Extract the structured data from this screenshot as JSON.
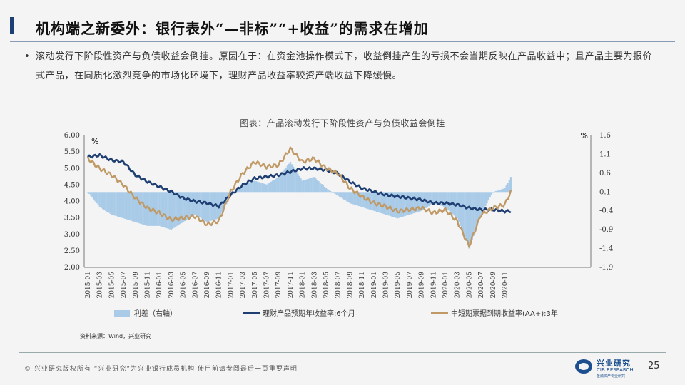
{
  "slide": {
    "title": "机构端之新委外：银行表外“—非标”“+收益”的需求在增加",
    "bullet_symbol": "•",
    "bullet": "滚动发行下阶段性资产与负债收益会倒挂。原因在于：在资金池操作模式下，收益倒挂产生的亏损不会当期反映在产品收益中；且产品主要为报价式产品，在同质化激烈竞争的市场化环境下，理财产品收益率较资产端收益下降缓慢。",
    "chart_title": "图表：产品滚动发行下阶段性资产与负债收益会倒挂",
    "source": "资料来源：Wind，兴业研究",
    "footer": "©  兴业研究版权所有  “兴业研究”为兴业银行成员机构  使用前请参阅最后一页重要声明",
    "page_number": "25",
    "logo": {
      "cn": "兴业研究",
      "en": "CIB RESEARCH",
      "sub": "金融资产专业研究"
    }
  },
  "chart_data": {
    "type": "line",
    "x_tick_labels": [
      "2015-01",
      "2015-03",
      "2015-05",
      "2015-07",
      "2015-09",
      "2015-11",
      "2016-01",
      "2016-03",
      "2016-05",
      "2016-07",
      "2016-09",
      "2016-11",
      "2017-01",
      "2017-03",
      "2017-05",
      "2017-07",
      "2017-09",
      "2017-11",
      "2018-01",
      "2018-03",
      "2018-05",
      "2018-07",
      "2018-09",
      "2018-11",
      "2019-01",
      "2019-03",
      "2019-05",
      "2019-07",
      "2019-09",
      "2019-11",
      "2020-01",
      "2020-03",
      "2020-05",
      "2020-07",
      "2020-09",
      "2020-11"
    ],
    "y_left": {
      "unit": "%",
      "min": 2.0,
      "max": 6.0,
      "ticks": [
        "2.00",
        "2.50",
        "3.00",
        "3.50",
        "4.00",
        "4.50",
        "5.00",
        "5.50",
        "6.00"
      ]
    },
    "y_right": {
      "unit": "%",
      "min": -1.9,
      "max": 1.6,
      "ticks": [
        "-1.9",
        "-1.4",
        "-0.9",
        "-0.4",
        "0.1",
        "0.6",
        "1.1",
        "1.6"
      ]
    },
    "grid": false,
    "legend_position": "bottom",
    "series": [
      {
        "name": "利差（右轴）",
        "axis": "right",
        "type": "bar",
        "color": "#a9cbe8",
        "x": [
          "2015-01",
          "2015-03",
          "2015-05",
          "2015-07",
          "2015-09",
          "2015-11",
          "2016-01",
          "2016-03",
          "2016-05",
          "2016-07",
          "2016-09",
          "2016-11",
          "2017-01",
          "2017-03",
          "2017-05",
          "2017-07",
          "2017-09",
          "2017-11",
          "2018-01",
          "2018-03",
          "2018-05",
          "2018-07",
          "2018-09",
          "2018-11",
          "2019-01",
          "2019-03",
          "2019-05",
          "2019-07",
          "2019-09",
          "2019-11",
          "2020-01",
          "2020-03",
          "2020-05",
          "2020-07",
          "2020-09",
          "2020-11",
          "2020-12"
        ],
        "values": [
          0.1,
          -0.3,
          -0.5,
          -0.6,
          -0.7,
          -0.8,
          -0.8,
          -0.9,
          -0.7,
          -0.5,
          -0.7,
          -0.6,
          0.0,
          0.3,
          0.4,
          0.3,
          0.5,
          0.9,
          0.4,
          0.5,
          0.2,
          0.0,
          -0.2,
          -0.3,
          -0.4,
          -0.5,
          -0.6,
          -0.5,
          -0.4,
          -0.2,
          -0.3,
          -0.6,
          -1.4,
          -0.5,
          0.1,
          0.2,
          0.5
        ]
      },
      {
        "name": "理财产品预期年收益率:6个月",
        "axis": "left",
        "type": "line",
        "color": "#1f3e72",
        "x": [
          "2015-01",
          "2015-03",
          "2015-05",
          "2015-07",
          "2015-09",
          "2015-11",
          "2016-01",
          "2016-03",
          "2016-05",
          "2016-07",
          "2016-09",
          "2016-11",
          "2017-01",
          "2017-03",
          "2017-05",
          "2017-07",
          "2017-09",
          "2017-11",
          "2018-01",
          "2018-03",
          "2018-05",
          "2018-07",
          "2018-09",
          "2018-11",
          "2019-01",
          "2019-03",
          "2019-05",
          "2019-07",
          "2019-09",
          "2019-11",
          "2020-01",
          "2020-03",
          "2020-05",
          "2020-07",
          "2020-09",
          "2020-11",
          "2020-12"
        ],
        "values": [
          5.35,
          5.4,
          5.25,
          5.2,
          4.8,
          4.6,
          4.45,
          4.3,
          4.1,
          4.0,
          3.95,
          3.85,
          4.2,
          4.5,
          4.7,
          4.75,
          4.8,
          4.9,
          5.0,
          5.0,
          4.95,
          4.85,
          4.6,
          4.4,
          4.3,
          4.2,
          4.15,
          4.1,
          4.05,
          3.95,
          3.95,
          3.9,
          3.8,
          3.75,
          3.75,
          3.7,
          3.7
        ]
      },
      {
        "name": "中短期票据到期收益率(AA+):3年",
        "axis": "left",
        "type": "line",
        "color": "#c09a66",
        "x": [
          "2015-01",
          "2015-03",
          "2015-05",
          "2015-07",
          "2015-09",
          "2015-11",
          "2016-01",
          "2016-03",
          "2016-05",
          "2016-07",
          "2016-09",
          "2016-11",
          "2017-01",
          "2017-03",
          "2017-05",
          "2017-07",
          "2017-09",
          "2017-11",
          "2018-01",
          "2018-03",
          "2018-05",
          "2018-07",
          "2018-09",
          "2018-11",
          "2019-01",
          "2019-03",
          "2019-05",
          "2019-07",
          "2019-09",
          "2019-11",
          "2020-01",
          "2020-03",
          "2020-05",
          "2020-07",
          "2020-09",
          "2020-11",
          "2020-12"
        ],
        "values": [
          5.3,
          5.0,
          4.8,
          4.5,
          4.1,
          3.8,
          3.65,
          3.45,
          3.5,
          3.55,
          3.3,
          3.4,
          4.3,
          4.85,
          5.2,
          5.05,
          5.1,
          5.6,
          5.2,
          5.3,
          5.0,
          4.85,
          4.4,
          4.15,
          3.95,
          3.85,
          3.7,
          3.75,
          3.8,
          3.65,
          3.75,
          3.4,
          2.65,
          3.6,
          3.8,
          3.9,
          4.3
        ]
      }
    ]
  }
}
